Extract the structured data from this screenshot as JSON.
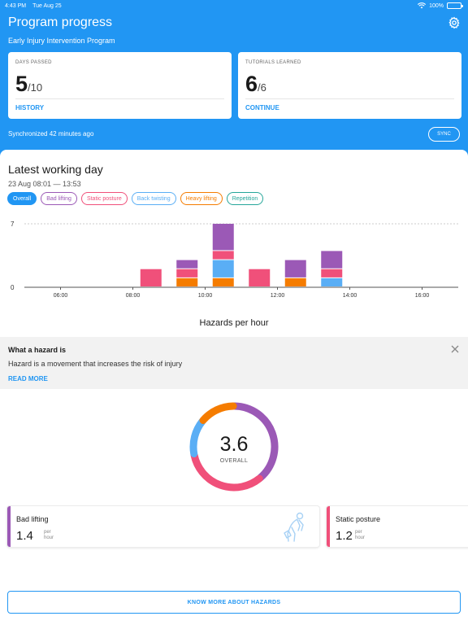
{
  "status_bar": {
    "time": "4:43 PM",
    "date": "Tue Aug 25",
    "battery": "100%",
    "battery_level": 1.0
  },
  "header": {
    "title": "Program progress",
    "subtitle": "Early Injury Intervention Program",
    "cards": [
      {
        "label": "DAYS PASSED",
        "value": "5",
        "total": "/10",
        "link": "HISTORY"
      },
      {
        "label": "TUTORIALS LEARNED",
        "value": "6",
        "total": "/6",
        "link": "CONTINUE"
      }
    ],
    "sync_text": "Synchronized 42 minutes ago",
    "sync_button": "SYNC"
  },
  "day": {
    "title": "Latest working day",
    "range": "23 Aug 08:01 — 13:53",
    "chips": [
      {
        "label": "Overall",
        "color": "#2196f3",
        "active": true
      },
      {
        "label": "Bad lifting",
        "color": "#9b59b6",
        "active": false
      },
      {
        "label": "Static posture",
        "color": "#f0507a",
        "active": false
      },
      {
        "label": "Back twisting",
        "color": "#5aaef5",
        "active": false
      },
      {
        "label": "Heavy lifting",
        "color": "#f57c00",
        "active": false
      },
      {
        "label": "Repetition",
        "color": "#26a69a",
        "active": false
      }
    ]
  },
  "chart_data": {
    "type": "bar",
    "stacked": true,
    "x_ticks": [
      "06:00",
      "08:00",
      "10:00",
      "12:00",
      "14:00",
      "16:00"
    ],
    "x_range": [
      5,
      17
    ],
    "y_ticks": [
      "7",
      "0"
    ],
    "ylim": [
      0,
      7
    ],
    "grid": true,
    "categories": [
      "08:00",
      "09:00",
      "10:00",
      "11:00",
      "12:00",
      "13:00"
    ],
    "series": [
      {
        "name": "Heavy lifting",
        "color": "#f57c00",
        "values": [
          0,
          1,
          1,
          0,
          1,
          0
        ]
      },
      {
        "name": "Back twisting",
        "color": "#5aaef5",
        "values": [
          0,
          0,
          2,
          0,
          0,
          1
        ]
      },
      {
        "name": "Static posture",
        "color": "#f0507a",
        "values": [
          2,
          1,
          1,
          2,
          0,
          1
        ]
      },
      {
        "name": "Bad lifting",
        "color": "#9b59b6",
        "values": [
          0,
          1,
          3,
          0,
          2,
          2
        ]
      }
    ],
    "xlabel": "Hazards per hour"
  },
  "info": {
    "heading": "What a hazard is",
    "body": "Hazard is a movement that increases the risk of injury",
    "read_more": "READ MORE"
  },
  "donut": {
    "value": "3.6",
    "label": "OVERALL",
    "segments": [
      {
        "name": "Bad lifting",
        "color": "#9b59b6",
        "fraction": 0.39
      },
      {
        "name": "Static posture",
        "color": "#f0507a",
        "fraction": 0.33
      },
      {
        "name": "Back twisting",
        "color": "#5aaef5",
        "fraction": 0.14
      },
      {
        "name": "Heavy lifting",
        "color": "#f57c00",
        "fraction": 0.14
      }
    ]
  },
  "hazard_cards": [
    {
      "name": "Bad lifting",
      "value": "1.4",
      "unit_top": "per",
      "unit_bottom": "hour",
      "color": "#9b59b6",
      "icon": "person-lifting-icon"
    },
    {
      "name": "Static posture",
      "value": "1.2",
      "unit_top": "per",
      "unit_bottom": "hour",
      "color": "#f0507a"
    }
  ],
  "know_more": "KNOW MORE ABOUT HAZARDS"
}
